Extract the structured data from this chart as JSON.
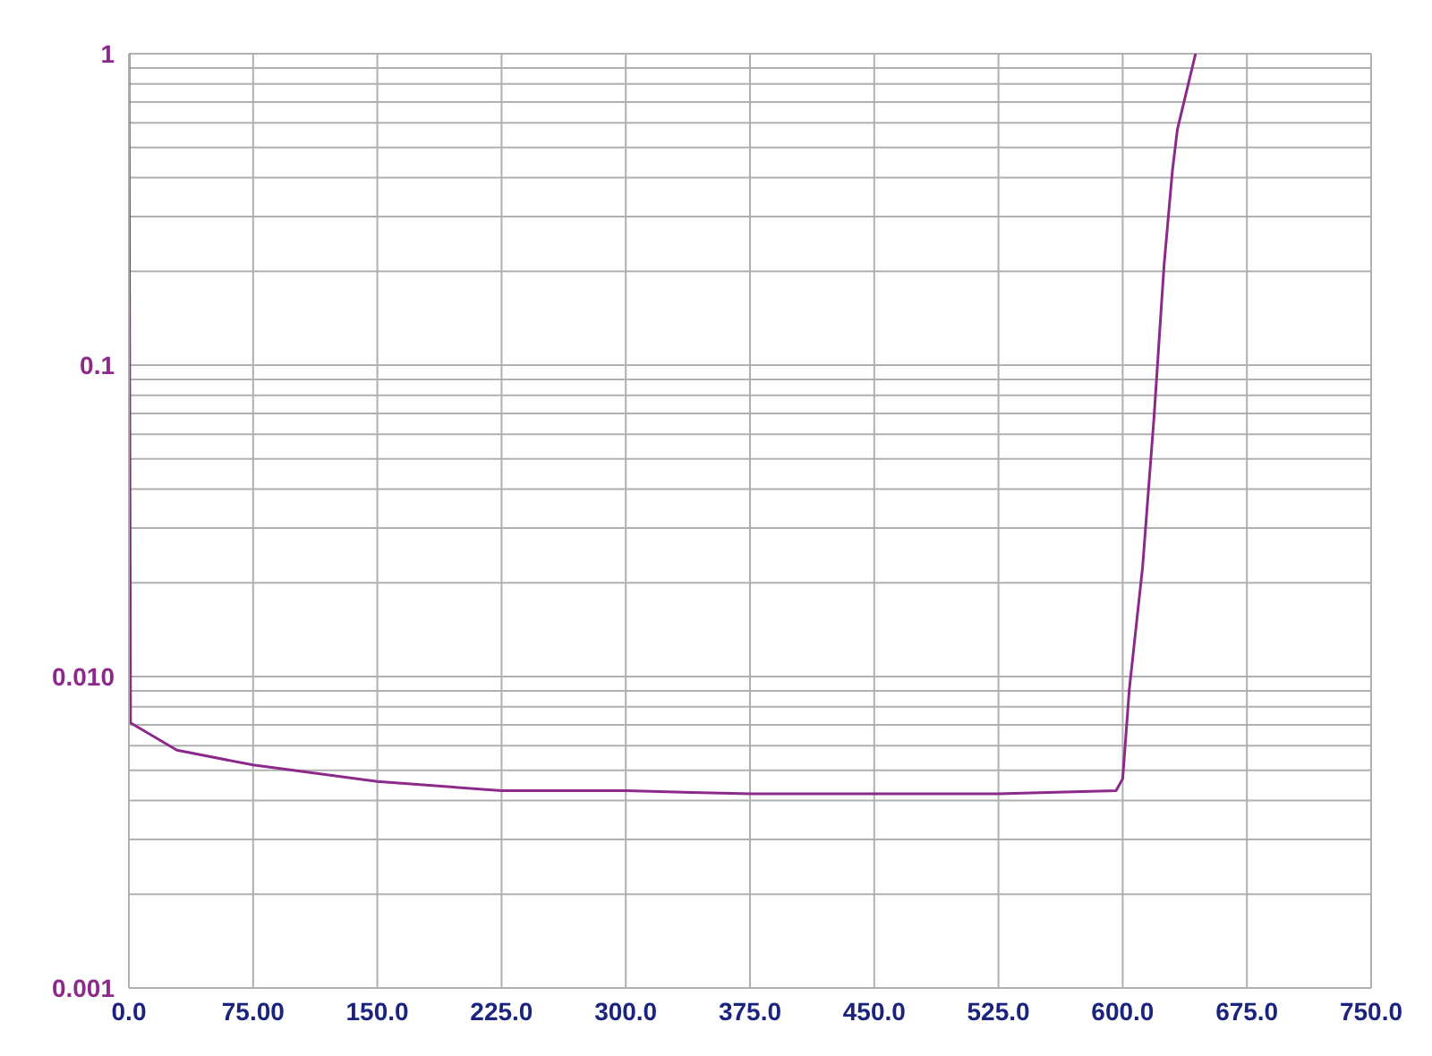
{
  "chart_data": {
    "type": "line",
    "log": "y",
    "grid": true,
    "marker": "none",
    "line_style": "solid",
    "x": [
      0,
      1,
      29,
      75,
      150,
      225,
      300,
      375,
      450,
      525,
      596,
      600,
      604,
      612,
      619,
      625,
      630,
      633,
      644
    ],
    "series": [
      {
        "color": "#8b2a8b",
        "values": [
          1,
          0.0071,
          0.0058,
          0.0052,
          0.0046,
          0.0043,
          0.0043,
          0.0042,
          0.0042,
          0.0042,
          0.0043,
          0.0047,
          0.0091,
          0.0224,
          0.069,
          0.21,
          0.42,
          0.57,
          1
        ]
      }
    ],
    "xlim": [
      0,
      750
    ],
    "xticks": [
      {
        "value": 0,
        "label": "0.0"
      },
      {
        "value": 75,
        "label": "75.00"
      },
      {
        "value": 150,
        "label": "150.0"
      },
      {
        "value": 225,
        "label": "225.0"
      },
      {
        "value": 300,
        "label": "300.0"
      },
      {
        "value": 375,
        "label": "375.0"
      },
      {
        "value": 450,
        "label": "450.0"
      },
      {
        "value": 525,
        "label": "525.0"
      },
      {
        "value": 600,
        "label": "600.0"
      },
      {
        "value": 675,
        "label": "675.0"
      },
      {
        "value": 750,
        "label": "750.0"
      }
    ],
    "ylim": [
      0.001,
      1
    ],
    "yticks": [
      {
        "value": 0.001,
        "label": "0.001"
      },
      {
        "value": 0.002,
        "label": null
      },
      {
        "value": 0.003,
        "label": null
      },
      {
        "value": 0.004,
        "label": null
      },
      {
        "value": 0.005,
        "label": null
      },
      {
        "value": 0.006,
        "label": null
      },
      {
        "value": 0.007,
        "label": null
      },
      {
        "value": 0.008,
        "label": null
      },
      {
        "value": 0.009,
        "label": null
      },
      {
        "value": 0.01,
        "label": "0.010"
      },
      {
        "value": 0.02,
        "label": null
      },
      {
        "value": 0.03,
        "label": null
      },
      {
        "value": 0.04,
        "label": null
      },
      {
        "value": 0.05,
        "label": null
      },
      {
        "value": 0.06,
        "label": null
      },
      {
        "value": 0.07,
        "label": null
      },
      {
        "value": 0.08,
        "label": null
      },
      {
        "value": 0.09,
        "label": null
      },
      {
        "value": 0.1,
        "label": "0.1"
      },
      {
        "value": 0.2,
        "label": null
      },
      {
        "value": 0.3,
        "label": null
      },
      {
        "value": 0.4,
        "label": null
      },
      {
        "value": 0.5,
        "label": null
      },
      {
        "value": 0.6,
        "label": null
      },
      {
        "value": 0.7,
        "label": null
      },
      {
        "value": 0.8,
        "label": null
      },
      {
        "value": 0.9,
        "label": null
      },
      {
        "value": 1,
        "label": "1"
      }
    ]
  }
}
